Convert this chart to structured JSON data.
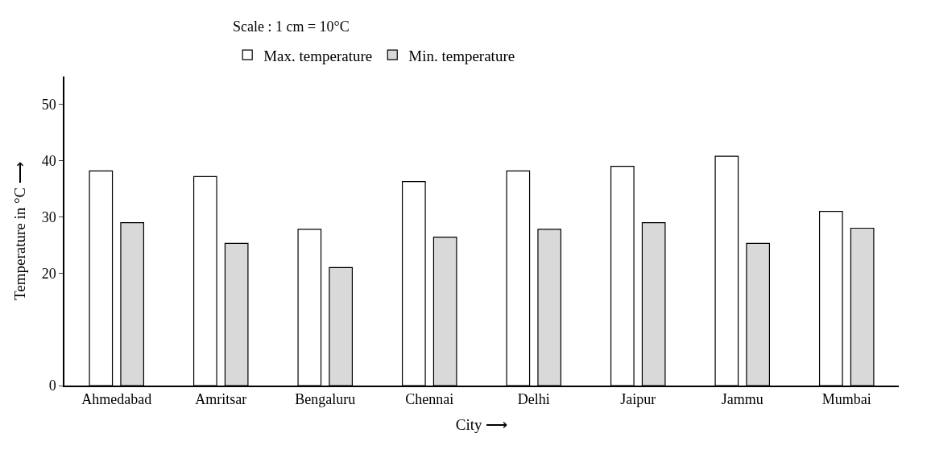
{
  "chart_data": {
    "type": "bar",
    "xlabel": "City ⟶",
    "ylabel": "Temperature in °C ⟶",
    "annotations": [
      "Scale : 1 cm = 10°C"
    ],
    "categories": [
      "Ahmedabad",
      "Amritsar",
      "Bengaluru",
      "Chennai",
      "Delhi",
      "Jaipur",
      "Jammu",
      "Mumbai"
    ],
    "series": [
      {
        "name": "Max. temperature",
        "color": "#ffffff",
        "values": [
          38.2,
          37.2,
          27.8,
          36.3,
          38.2,
          39,
          40.8,
          31
        ]
      },
      {
        "name": "Min. temperature",
        "color": "#d9d9d9",
        "values": [
          29,
          25.3,
          21,
          26.4,
          27.8,
          29,
          25.3,
          28
        ]
      }
    ],
    "ylim": [
      0,
      55
    ],
    "yticks": [
      0,
      20,
      30,
      40,
      50
    ],
    "legend": "top"
  }
}
